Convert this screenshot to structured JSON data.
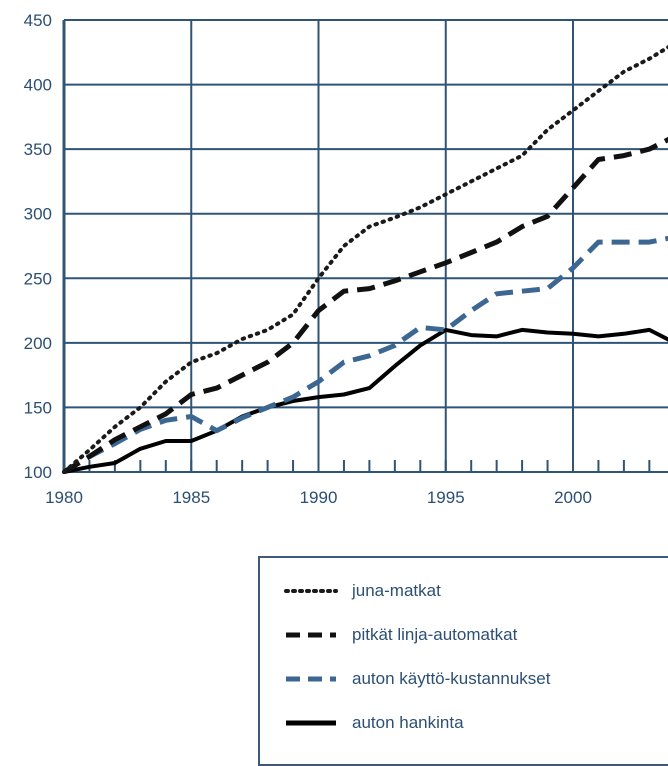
{
  "chart_data": {
    "type": "line",
    "title": "",
    "xlabel": "",
    "ylabel": "",
    "xlim": [
      1980,
      2004
    ],
    "ylim": [
      100,
      450
    ],
    "x_ticks": [
      1980,
      1985,
      1990,
      1995,
      2000
    ],
    "y_ticks": [
      100,
      150,
      200,
      250,
      300,
      350,
      400,
      450
    ],
    "grid": true,
    "legend_position": "bottom-right",
    "x": [
      1980,
      1981,
      1982,
      1983,
      1984,
      1985,
      1986,
      1987,
      1988,
      1989,
      1990,
      1991,
      1992,
      1993,
      1994,
      1995,
      1996,
      1997,
      1998,
      1999,
      2000,
      2001,
      2002,
      2003,
      2004
    ],
    "series": [
      {
        "name": "juna-matkat",
        "color": "#1a1a1a",
        "style": "dotted",
        "values": [
          100,
          117,
          135,
          150,
          170,
          185,
          192,
          203,
          210,
          222,
          250,
          275,
          290,
          297,
          305,
          315,
          325,
          335,
          345,
          365,
          380,
          395,
          410,
          420,
          432
        ]
      },
      {
        "name": "pitkät linja-automatkat",
        "color": "#111111",
        "style": "dashed",
        "values": [
          100,
          112,
          125,
          135,
          145,
          160,
          165,
          175,
          185,
          200,
          225,
          240,
          242,
          248,
          255,
          262,
          270,
          278,
          290,
          298,
          320,
          342,
          345,
          350,
          360
        ]
      },
      {
        "name": "auton käyttö-kustannukset",
        "color": "#3d6793",
        "style": "dashed",
        "values": [
          100,
          112,
          122,
          133,
          140,
          143,
          132,
          142,
          150,
          158,
          170,
          185,
          190,
          198,
          212,
          210,
          225,
          238,
          240,
          242,
          258,
          278,
          278,
          278,
          282
        ]
      },
      {
        "name": "auton hankinta",
        "color": "#000000",
        "style": "solid",
        "values": [
          100,
          104,
          107,
          118,
          124,
          124,
          132,
          143,
          150,
          155,
          158,
          160,
          165,
          182,
          198,
          210,
          206,
          205,
          210,
          208,
          207,
          205,
          207,
          210,
          200
        ]
      }
    ]
  }
}
